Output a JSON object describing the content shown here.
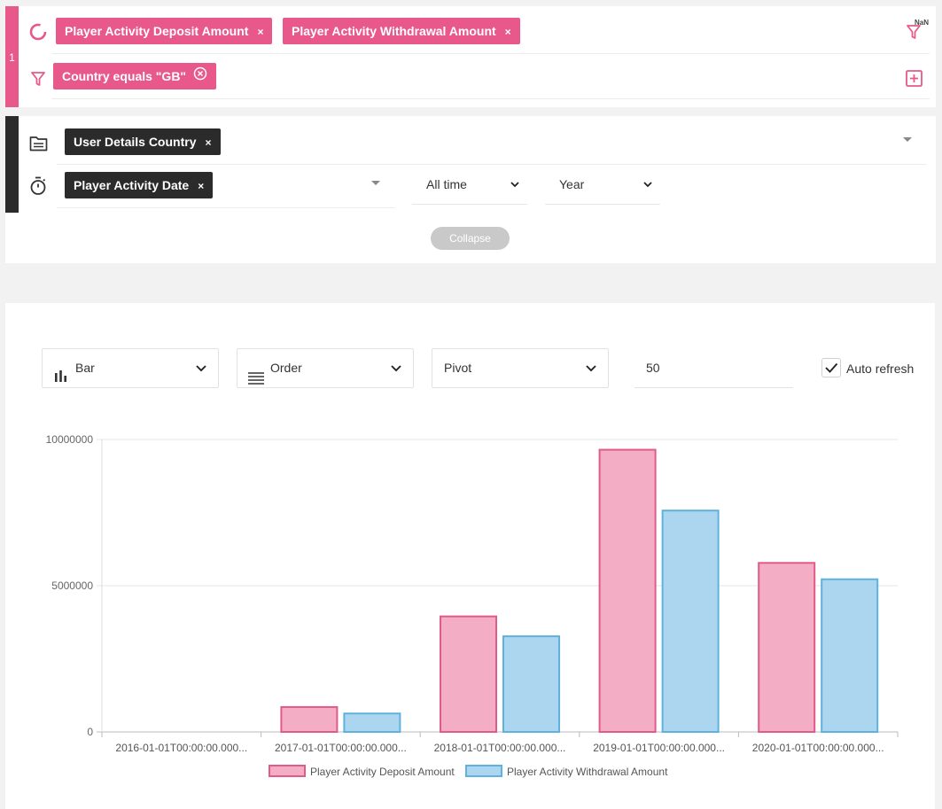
{
  "query": {
    "row_number": "1",
    "measures": [
      {
        "label": "Player Activity Deposit Amount",
        "remove": "×"
      },
      {
        "label": "Player Activity Withdrawal Amount",
        "remove": "×"
      }
    ],
    "filter_badge": "NaN",
    "filters": [
      {
        "label": "Country equals \"GB\""
      }
    ]
  },
  "dimensions": {
    "group_by": [
      {
        "label": "User Details Country",
        "remove": "×"
      }
    ],
    "time_dimension": {
      "label": "Player Activity Date",
      "remove": "×"
    },
    "date_range": "All time",
    "granularity": "Year",
    "collapse_label": "Collapse"
  },
  "controls": {
    "chart_type": "Bar",
    "order": "Order",
    "pivot": "Pivot",
    "limit": "50",
    "auto_refresh_label": "Auto refresh",
    "auto_refresh_checked": true
  },
  "colors": {
    "accent": "#e8588a",
    "dark": "#2b2b2b",
    "deposit_fill": "#f3adc5",
    "deposit_stroke": "#e05a8a",
    "withdrawal_fill": "#acd6ef",
    "withdrawal_stroke": "#5fb1de"
  },
  "chart_data": {
    "type": "bar",
    "categories": [
      "2016-01-01T00:00:00.000...",
      "2017-01-01T00:00:00.000...",
      "2018-01-01T00:00:00.000...",
      "2019-01-01T00:00:00.000...",
      "2020-01-01T00:00:00.000..."
    ],
    "series": [
      {
        "name": "Player Activity Deposit Amount",
        "values": [
          0,
          850000,
          3950000,
          9650000,
          5780000
        ]
      },
      {
        "name": "Player Activity Withdrawal Amount",
        "values": [
          0,
          630000,
          3270000,
          7570000,
          5220000
        ]
      }
    ],
    "yticks": [
      "0",
      "5000000",
      "10000000"
    ],
    "ylim": [
      0,
      10000000
    ],
    "grid": true,
    "legend_position": "bottom"
  }
}
